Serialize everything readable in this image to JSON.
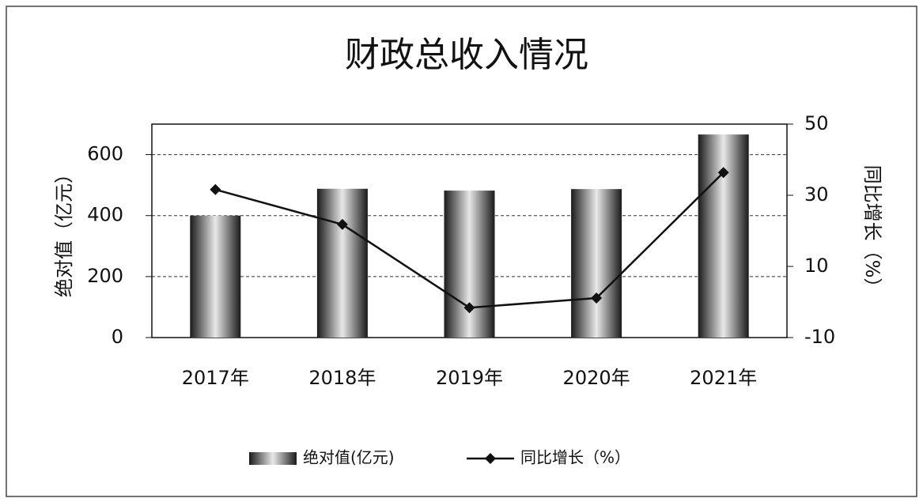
{
  "chart_data": {
    "type": "bar",
    "title": "财政总收入情况",
    "categories": [
      "2017年",
      "2018年",
      "2019年",
      "2020年",
      "2021年"
    ],
    "series": [
      {
        "name": "绝对值(亿元)",
        "type": "bar",
        "color": "#3a3a3a",
        "values": [
          400,
          488,
          482,
          487,
          666
        ]
      },
      {
        "name": "同比增长（%）",
        "type": "line",
        "axis": "y2",
        "color": "#111111",
        "values": [
          31.6,
          21.8,
          -1.6,
          1.1,
          36.4
        ]
      }
    ],
    "ylabel": "绝对值（亿元）",
    "y2label": "同比增长（%）",
    "ylim": [
      0,
      700
    ],
    "yticks": [
      0,
      200,
      400,
      600
    ],
    "y2lim": [
      -10,
      50
    ],
    "y2ticks": [
      -10,
      10,
      30,
      50
    ],
    "grid": true,
    "legend": "bottom"
  }
}
